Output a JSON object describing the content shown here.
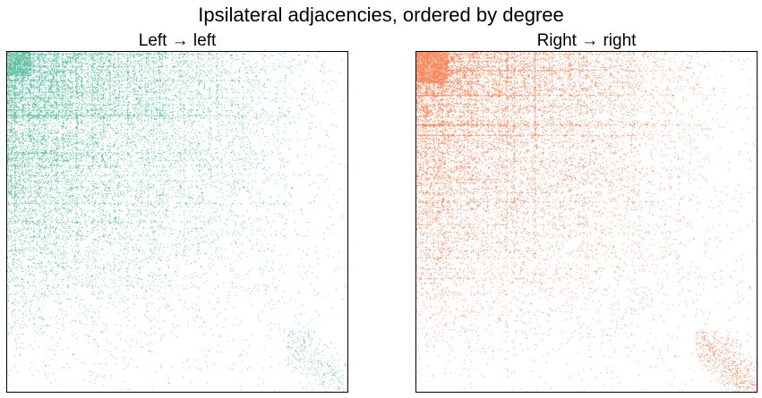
{
  "figure": {
    "suptitle": "Ipsilateral adjacencies, ordered by degree"
  },
  "chart_data": [
    {
      "type": "heatmap",
      "title": "Left → left",
      "xlabel": "",
      "ylabel": "",
      "axes_ticks": "none",
      "grid": false,
      "color": "#66c2a5",
      "description_of_values": "binary adjacency matrix (edge present = dot), rows and columns sorted by node degree; density highest in the top-left and falling off toward the bottom-right, with a faint cluster along the diagonal near the bottom-right corner",
      "density_profile": {
        "dense_block_fraction": 0.07,
        "peak_density": 0.85,
        "background_density": 0.006
      }
    },
    {
      "type": "heatmap",
      "title": "Right → right",
      "xlabel": "",
      "ylabel": "",
      "axes_ticks": "none",
      "grid": false,
      "color": "#fc8d62",
      "description_of_values": "binary adjacency matrix (edge present = dot), rows and columns sorted by node degree; density highest in the top-left and falling off toward the bottom-right, with a visible cluster along the diagonal near the bottom-right corner",
      "density_profile": {
        "dense_block_fraction": 0.09,
        "peak_density": 0.9,
        "background_density": 0.006
      }
    }
  ]
}
